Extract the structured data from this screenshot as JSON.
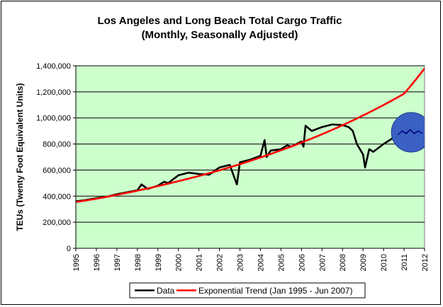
{
  "chart_data": {
    "type": "line",
    "title": "Los Angeles and Long Beach Total Cargo Traffic",
    "subtitle": "(Monthly, Seasonally Adjusted)",
    "xlabel": "",
    "ylabel": "TEUs (Twenty Foot Equivalent Units)",
    "ylim": [
      0,
      1400000
    ],
    "xlim": [
      1995,
      2012
    ],
    "y_ticks": [
      0,
      200000,
      400000,
      600000,
      800000,
      1000000,
      1200000,
      1400000
    ],
    "y_tick_labels": [
      "0",
      "200,000",
      "400,000",
      "600,000",
      "800,000",
      "1,000,000",
      "1,200,000",
      "1,400,000"
    ],
    "x_ticks": [
      1995,
      1996,
      1997,
      1998,
      1999,
      2000,
      2001,
      2002,
      2003,
      2004,
      2005,
      2006,
      2007,
      2008,
      2009,
      2010,
      2011,
      2012
    ],
    "plot_background": "#ccffcc",
    "grid": "horizontal",
    "legend_position": "bottom",
    "series": [
      {
        "name": "Data",
        "color": "#000000",
        "x": [
          1995.0,
          1995.5,
          1996.0,
          1996.5,
          1997.0,
          1997.5,
          1998.0,
          1998.2,
          1998.5,
          1999.0,
          1999.3,
          1999.5,
          2000.0,
          2000.5,
          2001.0,
          2001.5,
          2002.0,
          2002.5,
          2002.85,
          2003.0,
          2003.5,
          2004.0,
          2004.2,
          2004.3,
          2004.5,
          2005.0,
          2005.3,
          2005.5,
          2006.0,
          2006.1,
          2006.2,
          2006.5,
          2007.0,
          2007.5,
          2008.0,
          2008.3,
          2008.5,
          2008.7,
          2009.0,
          2009.1,
          2009.3,
          2009.5,
          2010.0,
          2010.5
        ],
        "y": [
          360000,
          370000,
          385000,
          395000,
          415000,
          430000,
          445000,
          490000,
          455000,
          480000,
          510000,
          500000,
          560000,
          580000,
          570000,
          565000,
          620000,
          640000,
          490000,
          660000,
          680000,
          710000,
          830000,
          700000,
          750000,
          760000,
          790000,
          780000,
          820000,
          780000,
          940000,
          900000,
          930000,
          950000,
          945000,
          930000,
          900000,
          800000,
          720000,
          620000,
          760000,
          740000,
          800000,
          850000
        ]
      },
      {
        "name": "Exponential Trend (Jan 1995 - Jun 2007)",
        "color": "#ff0000",
        "x": [
          1995,
          1996,
          1997,
          1998,
          1999,
          2000,
          2001,
          2002,
          2003,
          2004,
          2005,
          2006,
          2007,
          2008,
          2009,
          2010,
          2011,
          2012
        ],
        "y": [
          355000,
          380000,
          410000,
          442000,
          477000,
          515000,
          555000,
          598000,
          645000,
          697000,
          752000,
          811000,
          875000,
          944000,
          1019000,
          1099000,
          1186000,
          1380000
        ]
      }
    ],
    "annotations": [
      {
        "type": "highlight-circle",
        "fill": "#3366cc",
        "center_x": 2011.35,
        "center_y": 890000,
        "covered_series_x": [
          2010.7,
          2010.9,
          2011.1,
          2011.3,
          2011.5,
          2011.7,
          2011.9
        ],
        "covered_series_y": [
          870000,
          900000,
          880000,
          910000,
          880000,
          900000,
          880000
        ]
      }
    ]
  }
}
